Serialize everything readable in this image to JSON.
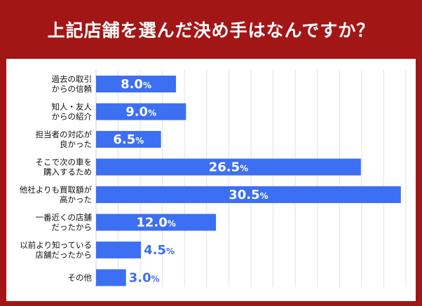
{
  "title": "上記店舗を選んだ決め手はなんですか？",
  "colors": {
    "background": "#a31616",
    "panel": "#ffffff",
    "bar": "#3d6ff3",
    "label_inside": "#ffffff",
    "label_outside": "#3d6ff3",
    "grid": "#e2e2e2"
  },
  "chart_data": {
    "type": "bar",
    "orientation": "horizontal",
    "categories": [
      [
        "過去の取引",
        "からの信頼"
      ],
      [
        "知人・友人",
        "からの紹介"
      ],
      [
        "担当者の対応が",
        "良かった"
      ],
      [
        "そこで次の車を",
        "購入するため"
      ],
      [
        "他社よりも買取額が",
        "高かった"
      ],
      [
        "一番近くの店舗",
        "だったから"
      ],
      [
        "以前より知っている",
        "店舗だったから"
      ],
      [
        "その他"
      ]
    ],
    "values": [
      8.0,
      9.0,
      6.5,
      26.5,
      30.5,
      12.0,
      4.5,
      3.0
    ],
    "value_suffix": "%",
    "xlim": [
      0,
      31
    ],
    "grid": true
  }
}
